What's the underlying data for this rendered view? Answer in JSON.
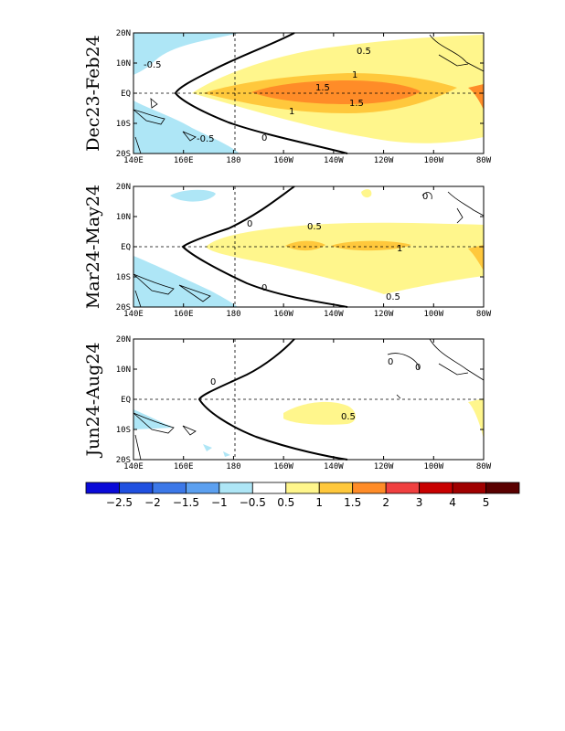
{
  "panels": [
    {
      "label": "Dec23-Feb24",
      "contour_labels": [
        "0.5",
        "1",
        "1.5",
        "1.5",
        "1",
        "0",
        "-0.5",
        "-0.5"
      ]
    },
    {
      "label": "Mar24-May24",
      "contour_labels": [
        "0",
        "0.5",
        "1",
        "0.5",
        "0",
        "0"
      ]
    },
    {
      "label": "Jun24-Aug24",
      "contour_labels": [
        "0",
        "0",
        "0",
        "0.5"
      ]
    }
  ],
  "lon_ticks": [
    "140E",
    "160E",
    "180",
    "160W",
    "140W",
    "120W",
    "100W",
    "80W"
  ],
  "lat_ticks": [
    "20N",
    "10N",
    "EQ",
    "10S",
    "20S"
  ],
  "colorbar": {
    "labels": [
      "-2.5",
      "-2",
      "-1.5",
      "-1",
      "-0.5",
      "0.5",
      "1",
      "1.5",
      "2",
      "3",
      "4",
      "5"
    ],
    "colors": [
      "#0a0ad8",
      "#2050e0",
      "#3c78e8",
      "#5ca0f0",
      "#aee6f6",
      "#ffffff",
      "#fff68c",
      "#ffc83c",
      "#ff8c28",
      "#f04040",
      "#c80000",
      "#a00000",
      "#5a0000"
    ]
  }
}
